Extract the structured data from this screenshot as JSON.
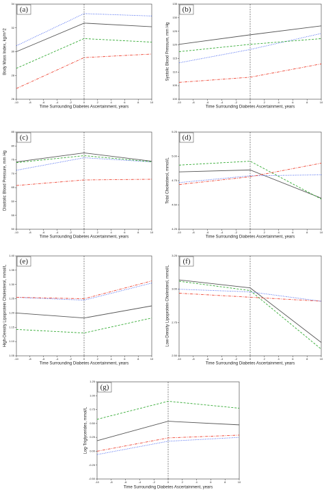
{
  "chart_data": [
    {
      "type": "line",
      "label": "(a)",
      "y_label": "Body Mass Index, kg/m^2",
      "x_label": "Time Surrounding Diabetes Ascertainment, years",
      "x": [
        -10,
        0,
        10
      ],
      "xlim": [
        -10,
        10
      ],
      "xticks": [
        -10,
        -8,
        -6,
        -4,
        -2,
        0,
        2,
        4,
        6,
        8,
        10
      ],
      "vline": 0,
      "ylim": [
        26,
        34
      ],
      "yticks": [
        26,
        28,
        30,
        32,
        34
      ],
      "series": [
        {
          "color": "#555555",
          "style": "solid",
          "values": [
            30.0,
            32.4,
            32.1
          ]
        },
        {
          "color": "#3355ee",
          "style": "dotted",
          "values": [
            30.5,
            33.2,
            33.0
          ]
        },
        {
          "color": "#33aa33",
          "style": "dashed",
          "values": [
            28.6,
            31.1,
            30.8
          ]
        },
        {
          "color": "#ee4433",
          "style": "dashdot",
          "values": [
            26.9,
            29.5,
            29.8
          ]
        }
      ]
    },
    {
      "type": "line",
      "label": "(b)",
      "y_label": "Systolic Blood Pressure, mm Hg",
      "x_label": "Time Surrounding Diabetes Ascertainment, years",
      "x": [
        -10,
        0,
        10
      ],
      "xlim": [
        -10,
        10
      ],
      "xticks": [
        -10,
        -8,
        -6,
        -4,
        -2,
        0,
        2,
        4,
        6,
        8,
        10
      ],
      "vline": 0,
      "ylim": [
        100,
        135
      ],
      "yticks": [
        100,
        105,
        110,
        115,
        120,
        125,
        130,
        135
      ],
      "series": [
        {
          "color": "#555555",
          "style": "solid",
          "values": [
            120.2,
            123.7,
            127.0
          ]
        },
        {
          "color": "#3355ee",
          "style": "dotted",
          "values": [
            113.4,
            118.3,
            124.2
          ]
        },
        {
          "color": "#33aa33",
          "style": "dashed",
          "values": [
            117.5,
            120.2,
            122.3
          ]
        },
        {
          "color": "#ee4433",
          "style": "dashdot",
          "values": [
            106.2,
            108.1,
            113.0
          ]
        }
      ]
    },
    {
      "type": "line",
      "label": "(c)",
      "y_label": "Diastolic Blood Pressure, mm Hg",
      "x_label": "Time Surrounding Diabetes Ascertainment, years",
      "x": [
        -10,
        0,
        10
      ],
      "xlim": [
        -10,
        10
      ],
      "xticks": [
        -10,
        -8,
        -6,
        -4,
        -2,
        0,
        2,
        4,
        6,
        8,
        10
      ],
      "vline": 0,
      "ylim": [
        50,
        85
      ],
      "yticks": [
        50,
        55,
        60,
        65,
        70,
        75,
        80,
        85
      ],
      "series": [
        {
          "color": "#555555",
          "style": "solid",
          "values": [
            74.25,
            77.5,
            74.5
          ]
        },
        {
          "color": "#3355ee",
          "style": "dotted",
          "values": [
            71.25,
            75.75,
            74.25
          ]
        },
        {
          "color": "#33aa33",
          "style": "dashed",
          "values": [
            74.0,
            76.5,
            74.3
          ]
        },
        {
          "color": "#ee4433",
          "style": "dashdot",
          "values": [
            65.75,
            67.75,
            68.0
          ]
        }
      ]
    },
    {
      "type": "line",
      "label": "(d)",
      "y_label": "Total Cholesterol, mmol/L",
      "x_label": "Time Surrounding Diabetes Ascertainment, years",
      "x": [
        -10,
        0,
        10
      ],
      "xlim": [
        -10,
        10
      ],
      "xticks": [
        -10,
        -8,
        -6,
        -4,
        -2,
        0,
        2,
        4,
        6,
        8,
        10
      ],
      "vline": 0,
      "ylim": [
        4.25,
        5.25
      ],
      "yticks": [
        4.25,
        {
          "value": 4.5,
          "label": "4.50"
        },
        4.75,
        {
          "value": 5,
          "label": "5.00"
        },
        5.25
      ],
      "series": [
        {
          "color": "#555555",
          "style": "solid",
          "values": [
            4.84,
            4.86,
            4.57
          ]
        },
        {
          "color": "#3355ee",
          "style": "dotted",
          "values": [
            4.73,
            4.8,
            4.81
          ]
        },
        {
          "color": "#33aa33",
          "style": "dashed",
          "values": [
            4.91,
            4.95,
            4.56
          ]
        },
        {
          "color": "#ee4433",
          "style": "dashdot",
          "values": [
            4.71,
            4.79,
            4.93
          ]
        }
      ]
    },
    {
      "type": "line",
      "label": "(e)",
      "y_label": "High-Density Lipoprotein Cholesterol, mmol/L",
      "x_label": "Time Surrounding Diabetes Ascertainment, years",
      "x": [
        -10,
        0,
        10
      ],
      "xlim": [
        -10,
        10
      ],
      "xticks": [
        -10,
        -8,
        -6,
        -4,
        -2,
        0,
        2,
        4,
        6,
        8,
        10
      ],
      "vline": 0,
      "ylim": [
        1.05,
        1.4
      ],
      "yticks": [
        1.05,
        {
          "value": 1.1,
          "label": "1.10"
        },
        1.15,
        {
          "value": 1.2,
          "label": "1.20"
        },
        1.25,
        {
          "value": 1.3,
          "label": "1.30"
        },
        1.35,
        {
          "value": 1.4,
          "label": "1.40"
        }
      ],
      "series": [
        {
          "color": "#555555",
          "style": "solid",
          "values": [
            1.2,
            1.1825,
            1.225
          ]
        },
        {
          "color": "#3355ee",
          "style": "dotted",
          "values": [
            1.255,
            1.245,
            1.305
          ]
        },
        {
          "color": "#33aa33",
          "style": "dashed",
          "values": [
            1.1425,
            1.13,
            1.1825
          ]
        },
        {
          "color": "#ee4433",
          "style": "dashdot",
          "values": [
            1.255,
            1.25,
            1.3125
          ]
        }
      ]
    },
    {
      "type": "line",
      "label": "(f)",
      "y_label": "Low-Density Lipoprotein Cholesterol, mmol/L",
      "x_label": "Time Surrounding Diabetes Ascertainment, years",
      "x": [
        -10,
        0,
        10
      ],
      "xlim": [
        -10,
        10
      ],
      "xticks": [
        -10,
        -8,
        -6,
        -4,
        -2,
        0,
        2,
        4,
        6,
        8,
        10
      ],
      "vline": 0,
      "ylim": [
        2.5,
        3.25
      ],
      "yticks": [
        {
          "value": 2.5,
          "label": "2.50"
        },
        2.75,
        {
          "value": 3,
          "label": "3.00"
        },
        3.25
      ],
      "series": [
        {
          "color": "#555555",
          "style": "solid",
          "values": [
            3.07,
            3.01,
            2.6
          ]
        },
        {
          "color": "#3355ee",
          "style": "dotted",
          "values": [
            3.0,
            2.98,
            2.91
          ]
        },
        {
          "color": "#33aa33",
          "style": "dashed",
          "values": [
            3.06,
            2.99,
            2.55
          ]
        },
        {
          "color": "#ee4433",
          "style": "dashdot",
          "values": [
            2.97,
            2.94,
            2.91
          ]
        }
      ]
    },
    {
      "type": "line",
      "label": "(g)",
      "y_label": "Log-Triglycerides, mmol/L",
      "x_label": "Time Surrounding Diabetes Ascertainment, years",
      "x": [
        -10,
        0,
        10
      ],
      "xlim": [
        -10,
        10
      ],
      "xticks": [
        -10,
        -8,
        -6,
        -4,
        -2,
        0,
        2,
        4,
        6,
        8,
        10
      ],
      "vline": 0,
      "ylim": [
        -0.5,
        1.25
      ],
      "yticks": [
        {
          "value": -0.5,
          "label": "-0.50"
        },
        -0.25,
        {
          "value": 0,
          "label": "0.00"
        },
        0.25,
        {
          "value": 0.5,
          "label": "0.50"
        },
        0.75,
        {
          "value": 1,
          "label": "1.00"
        },
        1.25
      ],
      "series": [
        {
          "color": "#555555",
          "style": "solid",
          "values": [
            0.19,
            0.54,
            0.475
          ]
        },
        {
          "color": "#3355ee",
          "style": "dotted",
          "values": [
            -0.06,
            0.18,
            0.25
          ]
        },
        {
          "color": "#33aa33",
          "style": "dashed",
          "values": [
            0.575,
            0.9,
            0.775
          ]
        },
        {
          "color": "#ee4433",
          "style": "dashdot",
          "values": [
            0.0,
            0.24,
            0.29
          ]
        }
      ]
    }
  ]
}
